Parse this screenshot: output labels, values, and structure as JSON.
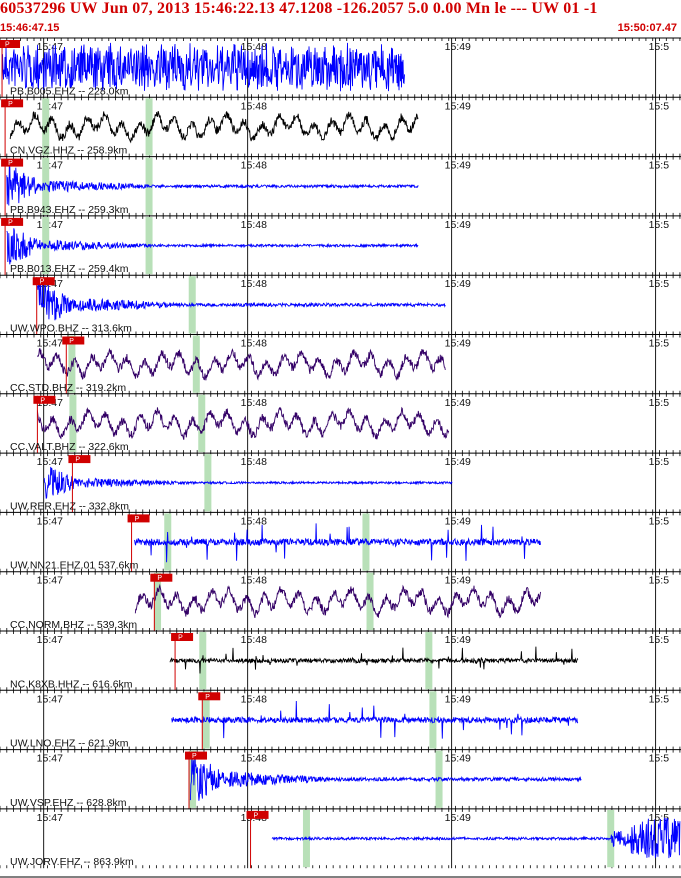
{
  "header": {
    "title": "60537296 UW Jun 07, 2013 15:46:22.13   47.1208 -126.2057  5.0 0.00 Mn le --- UW 01   -1",
    "start_time": "15:46:47.15",
    "end_time": "15:50:07.47"
  },
  "colors": {
    "header_text": "#d00000",
    "pick": "#d00000",
    "gap": "#b8e0b8"
  },
  "chart_data": {
    "type": "line",
    "title": "60537296 UW Jun 07, 2013 15:46:22.13   47.1208 -126.2057  5.0 0.00 Mn le --- UW 01   -1",
    "x_units": "seconds after 15:46:47.15",
    "x_range": [
      0,
      200.32
    ],
    "minute_ticks": [
      {
        "label": "15:47",
        "t": 12.85
      },
      {
        "label": "15:48",
        "t": 72.85
      },
      {
        "label": "15:49",
        "t": 132.85
      },
      {
        "label": "15:5",
        "t": 192.85
      }
    ],
    "traces": [
      {
        "label": "PB.B005.EHZ -- 228.0km",
        "color": "#0000ff",
        "pick_t": 0.6,
        "pick_label": "P",
        "data_start": 0.6,
        "data_end": 119,
        "amp": 0.95,
        "style": "noise",
        "gaps": []
      },
      {
        "label": "CN.VGZ.HHZ -- 258.9km",
        "color": "#000000",
        "pick_t": 1.5,
        "pick_label": "P",
        "data_start": 3,
        "data_end": 123,
        "amp": 0.55,
        "style": "wave",
        "gaps": [
          13.3,
          43.7
        ]
      },
      {
        "label": "PB.B943.EHZ -- 259.3km",
        "color": "#0000ff",
        "pick_t": 1.5,
        "pick_label": "P",
        "data_start": 2,
        "data_end": 123,
        "amp": 0.5,
        "style": "burst",
        "gaps": [
          13.3,
          43.7
        ]
      },
      {
        "label": "PB.B013.EHZ -- 259.4km",
        "color": "#0000ff",
        "pick_t": 1.5,
        "pick_label": "P",
        "data_start": 2,
        "data_end": 123,
        "amp": 0.45,
        "style": "burst",
        "gaps": [
          13.3,
          43.7
        ]
      },
      {
        "label": "UW.WPO.BHZ -- 313.6km",
        "color": "#0000ff",
        "pick_t": 10.8,
        "pick_label": "P",
        "data_start": 11,
        "data_end": 131,
        "amp": 0.6,
        "style": "burst",
        "gaps": [
          56.4
        ]
      },
      {
        "label": "CC.STD.BHZ -- 319.2km",
        "color": "#330066",
        "pick_t": 19.5,
        "pick_label": "P",
        "data_start": 11,
        "data_end": 131,
        "amp": 0.55,
        "style": "wave",
        "gaps": [
          21,
          57.6
        ]
      },
      {
        "label": "CC.VALT.BHZ -- 322.6km",
        "color": "#330066",
        "pick_t": 11,
        "pick_label": "P",
        "data_start": 11,
        "data_end": 132,
        "amp": 0.55,
        "style": "wave",
        "gaps": [
          21.3,
          59.2
        ]
      },
      {
        "label": "UW.RER.EHZ -- 332.8km",
        "color": "#0000ff",
        "pick_t": 21.3,
        "pick_label": "P",
        "data_start": 13,
        "data_end": 133,
        "amp": 0.4,
        "style": "burst",
        "gaps": [
          61
        ]
      },
      {
        "label": "UW.NN21.EHZ.01 537.6km",
        "color": "#0000ff",
        "pick_t": 38.7,
        "pick_label": "P",
        "data_start": 39.6,
        "data_end": 159,
        "amp": 0.7,
        "style": "spikes",
        "gaps": [
          49.2,
          107.5
        ]
      },
      {
        "label": "CC.NORM.BHZ -- 539.3km",
        "color": "#330066",
        "pick_t": 45.4,
        "pick_label": "P",
        "data_start": 39.8,
        "data_end": 159,
        "amp": 0.55,
        "style": "wave",
        "gaps": [
          46.2,
          108.7
        ]
      },
      {
        "label": "NC.K8XB.HHZ -- 616.6km",
        "color": "#000000",
        "pick_t": 51.5,
        "pick_label": "P",
        "data_start": 50,
        "data_end": 170,
        "amp": 0.45,
        "style": "spikes",
        "gaps": [
          59.5,
          126
        ]
      },
      {
        "label": "UW.LNO.EHZ -- 621.9km",
        "color": "#0000ff",
        "pick_t": 59.5,
        "pick_label": "P",
        "data_start": 50.5,
        "data_end": 170,
        "amp": 0.6,
        "style": "spikes",
        "gaps": [
          60.5,
          127.2
        ]
      },
      {
        "label": "UW.VSP.EHZ -- 628.8km",
        "color": "#0000ff",
        "pick_t": 55.6,
        "pick_label": "P",
        "data_start": 56,
        "data_end": 171,
        "amp": 0.65,
        "style": "burst",
        "gaps": [
          56.5,
          129
        ]
      },
      {
        "label": "UW.JORV.EHZ -- 863.9km",
        "color": "#0000ff",
        "pick_t": 73.7,
        "pick_label": "P",
        "data_start": 80,
        "data_end": 200,
        "amp": 0.3,
        "style": "late",
        "gaps": [
          90,
          179.5
        ]
      }
    ]
  }
}
